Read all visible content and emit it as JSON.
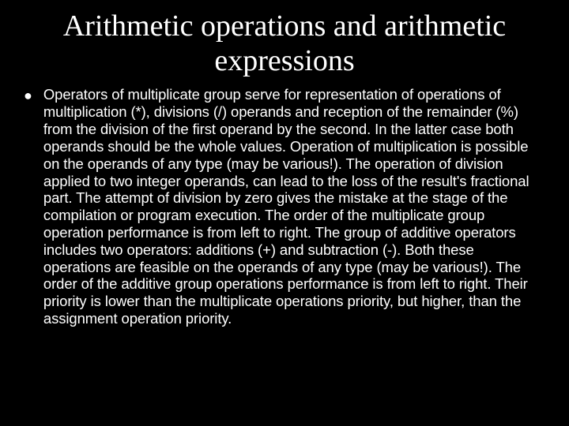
{
  "slide": {
    "title": "Arithmetic operations and arithmetic expressions",
    "bullet_glyph": "●",
    "body": "Operators of multiplicate group serve for representation of operations of multiplication (*), divisions (/) operands and reception of the remainder (%) from the division of the first operand by the second. In the latter case both operands should be the whole values. Operation of multiplication is possible on the operands of any type (may be various!). The operation of division applied to two integer operands, can lead to the loss of the result's fractional part. The attempt of division by zero gives the mistake at the stage of the compilation or program execution. The order of the multiplicate group operation performance is from left to right. The group of additive operators includes two operators: additions (+) and subtraction (-). Both these operations are feasible on the operands of any type (may be various!). The order of the additive group operations performance is from left to right. Their priority is lower than the multiplicate operations priority, but higher, than the assignment operation priority."
  },
  "style": {
    "background_color": "#000000",
    "text_color": "#ffffff",
    "title_font": "Times New Roman",
    "title_fontsize": 38,
    "body_font": "Arial",
    "body_fontsize": 18.5,
    "slide_width": 720,
    "slide_height": 540
  }
}
